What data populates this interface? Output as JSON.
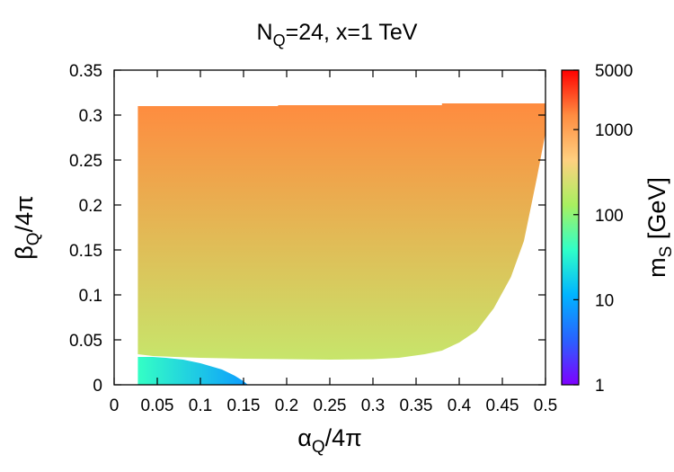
{
  "chart_data": {
    "type": "heatmap",
    "title": {
      "main": "N",
      "sub": "Q",
      "rest": "=24, x=1 TeV"
    },
    "xlabel": {
      "main": "α",
      "sub": "Q",
      "rest": "/4π"
    },
    "ylabel": {
      "main": "β",
      "sub": "Q",
      "rest": "/4π"
    },
    "colorbar_label": {
      "main": "m",
      "sub": "S",
      "rest": " [GeV]"
    },
    "xlim": [
      0,
      0.5
    ],
    "ylim": [
      0,
      0.35
    ],
    "x_ticks": [
      0,
      0.05,
      0.1,
      0.15,
      0.2,
      0.25,
      0.3,
      0.35,
      0.4,
      0.45,
      0.5
    ],
    "x_tick_labels": [
      "0",
      "0.05",
      "0.1",
      "0.15",
      "0.2",
      "0.25",
      "0.3",
      "0.35",
      "0.4",
      "0.45",
      "0.5"
    ],
    "y_ticks": [
      0,
      0.05,
      0.1,
      0.15,
      0.2,
      0.25,
      0.3,
      0.35
    ],
    "y_tick_labels": [
      "0",
      "0.05",
      "0.1",
      "0.15",
      "0.2",
      "0.25",
      "0.3",
      "0.35"
    ],
    "color_scale": "log",
    "color_range": [
      1,
      5000
    ],
    "colorbar_ticks": [
      1,
      10,
      100,
      1000,
      5000
    ],
    "colorbar_tick_labels": [
      "1",
      "10",
      "100",
      "1000",
      "5000"
    ],
    "colormap": [
      "#7f00ff",
      "#2962ff",
      "#00b4ff",
      "#30ffc8",
      "#a8f060",
      "#ffd080",
      "#ff8c40",
      "#ff0000"
    ],
    "grid": false,
    "regions": [
      {
        "name": "upper-region",
        "x_range": [
          0.0275,
          0.5
        ],
        "y_top_steps": [
          [
            0.0275,
            0.31
          ],
          [
            0.19,
            0.311
          ],
          [
            0.38,
            0.313
          ],
          [
            0.5,
            0.314
          ]
        ],
        "lower_boundary": [
          [
            0.0275,
            0.034
          ],
          [
            0.045,
            0.032
          ],
          [
            0.07,
            0.031
          ],
          [
            0.1,
            0.03
          ],
          [
            0.15,
            0.029
          ],
          [
            0.2,
            0.0285
          ],
          [
            0.25,
            0.028
          ],
          [
            0.3,
            0.0285
          ],
          [
            0.33,
            0.03
          ],
          [
            0.36,
            0.034
          ],
          [
            0.38,
            0.038
          ],
          [
            0.4,
            0.047
          ],
          [
            0.42,
            0.06
          ],
          [
            0.44,
            0.085
          ],
          [
            0.46,
            0.12
          ],
          [
            0.475,
            0.16
          ],
          [
            0.49,
            0.23
          ],
          [
            0.5,
            0.28
          ],
          [
            0.5,
            0.314
          ]
        ],
        "m_S_at_bottom": 200,
        "m_S_at_top": 1500
      },
      {
        "name": "lower-lobe",
        "boundary": [
          [
            0.0275,
            0.0
          ],
          [
            0.155,
            0.0
          ],
          [
            0.15,
            0.004
          ],
          [
            0.14,
            0.01
          ],
          [
            0.125,
            0.017
          ],
          [
            0.1,
            0.024
          ],
          [
            0.08,
            0.028
          ],
          [
            0.06,
            0.03
          ],
          [
            0.045,
            0.031
          ],
          [
            0.0275,
            0.031
          ]
        ],
        "m_S_at_left": 40,
        "m_S_at_right": 8
      }
    ]
  }
}
